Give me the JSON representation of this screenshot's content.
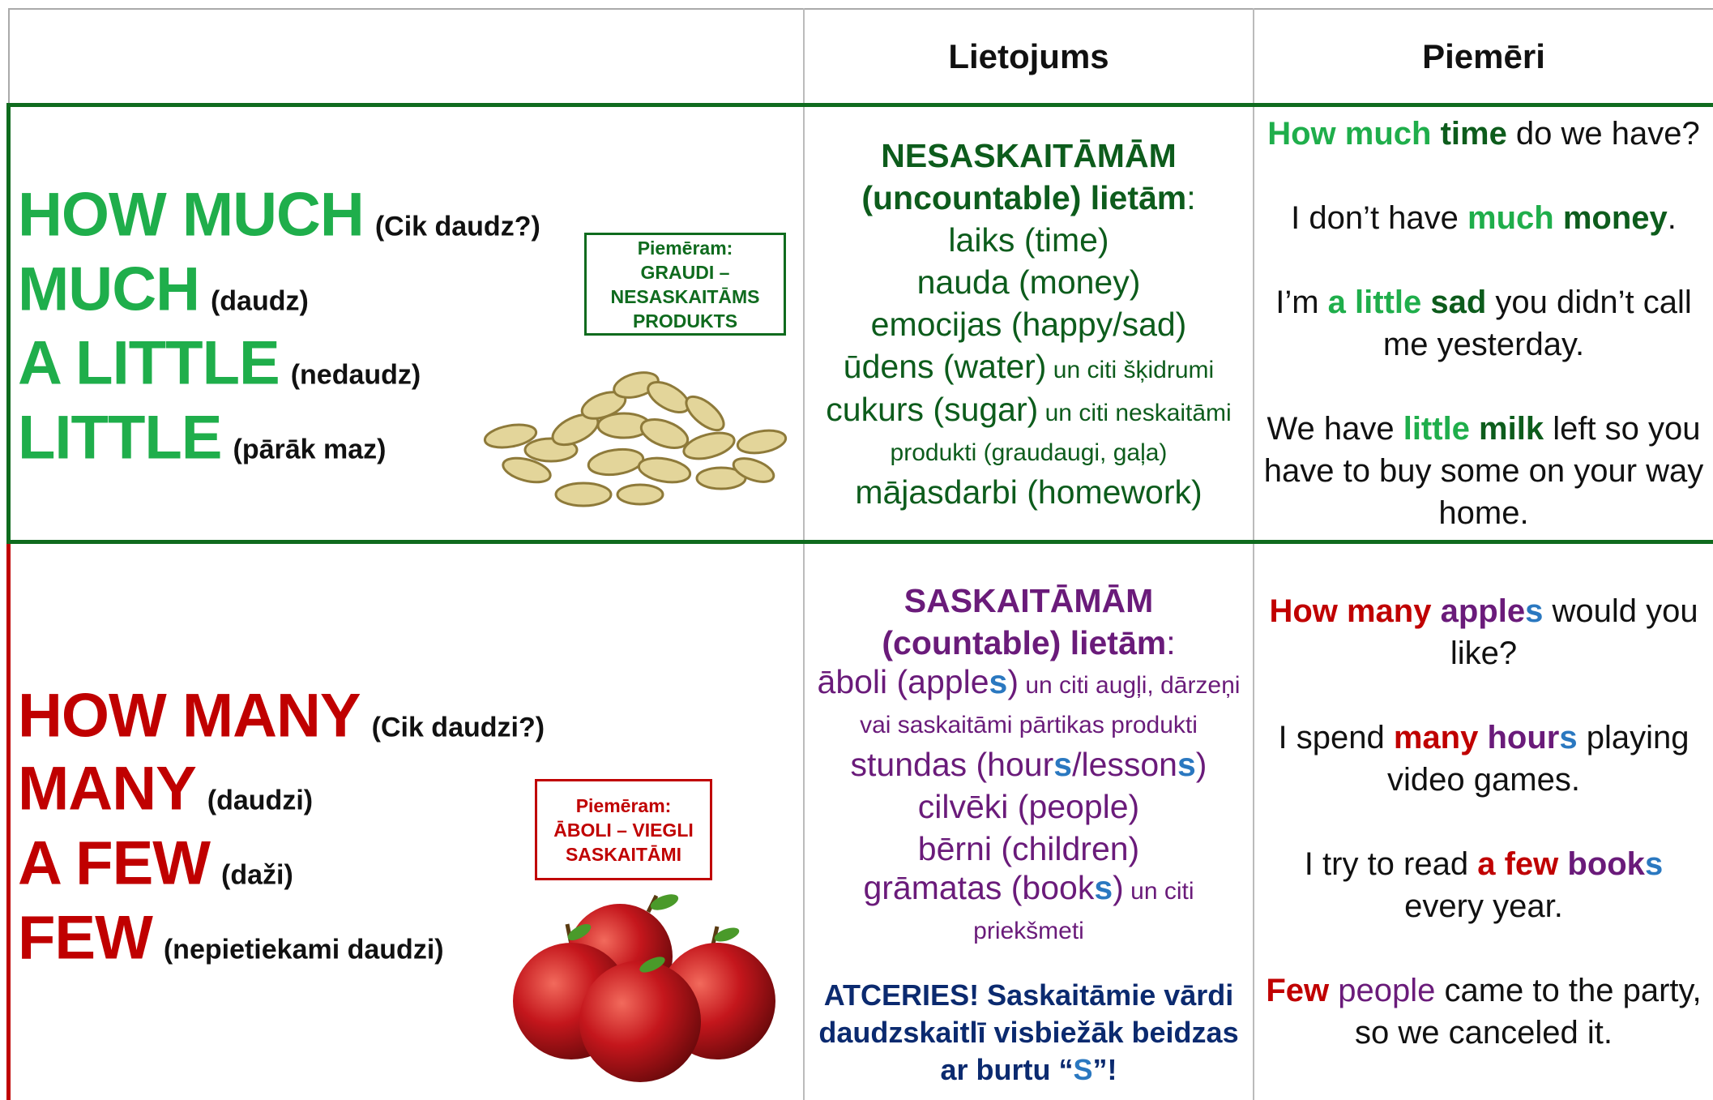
{
  "header": {
    "usage": "Lietojums",
    "examples": "Piemēri"
  },
  "rows": [
    {
      "terms": [
        [
          "HOW MUCH",
          "(Cik daudz?)"
        ],
        [
          "MUCH",
          "(daudz)"
        ],
        [
          "A LITTLE",
          "(nedaudz)"
        ],
        [
          "LITTLE",
          "(pārāk maz)"
        ]
      ],
      "note": [
        "Piemēram:",
        "GRAUDI –",
        "NESASKAITĀMS",
        "PRODUKTS"
      ],
      "usage": [
        [
          "NESASKAITĀMĀM"
        ],
        [
          "(uncountable) lietām",
          ":"
        ],
        [
          "laiks (time)"
        ],
        [
          "nauda (money)"
        ],
        [
          "emocijas (happy/sad)"
        ],
        [
          "ūdens (water)",
          " un citi šķidrumi"
        ],
        [
          "cukurs (sugar)",
          " un citi neskaitāmi produkti (graudaugi, gaļa)"
        ],
        [
          "mājasdarbi (homework)"
        ]
      ],
      "examples": [
        [
          "How much",
          " time",
          " do we have?"
        ],
        [
          "I don’t have ",
          "much",
          " money",
          "."
        ],
        [
          "I’m ",
          "a little",
          " sad",
          " you didn’t call me yesterday."
        ],
        [
          "We have ",
          "little",
          " milk",
          " left so you have to buy some on your way home."
        ]
      ]
    },
    {
      "terms": [
        [
          "HOW MANY",
          "(Cik daudzi?)"
        ],
        [
          "MANY",
          "(daudzi)"
        ],
        [
          "A FEW",
          "(daži)"
        ],
        [
          "FEW",
          "(nepietiekami daudzi)"
        ]
      ],
      "note": [
        "Piemēram:",
        "ĀBOLI – VIEGLI",
        "SASKAITĀMI"
      ],
      "usage": [
        [
          "SASKAITĀMĀM"
        ],
        [
          "(countable) lietām",
          ":"
        ],
        [
          "āboli (apple",
          "s",
          ")",
          " un citi augļi, dārzeņi vai saskaitāmi pārtikas produkti"
        ],
        [
          "stundas (hour",
          "s",
          "/lesson",
          "s",
          ")"
        ],
        [
          "cilvēki (people)"
        ],
        [
          "bērni (children)"
        ],
        [
          "grāmatas (book",
          "s",
          ")",
          " un citi priekšmeti"
        ]
      ],
      "reminder": [
        "ATCERIES! Saskaitāmie vārdi daudzskaitlī visbiežāk beidzas ar burtu “",
        "S",
        "”!"
      ],
      "examples": [
        [
          "How many",
          " apple",
          "s",
          " would you like?"
        ],
        [
          "I spend ",
          "many",
          " hour",
          "s",
          " playing video games."
        ],
        [
          "I try to read ",
          "a few",
          " book",
          "s",
          " every year."
        ],
        [
          "Few",
          " people",
          " came to the party, so we canceled it."
        ]
      ]
    }
  ]
}
